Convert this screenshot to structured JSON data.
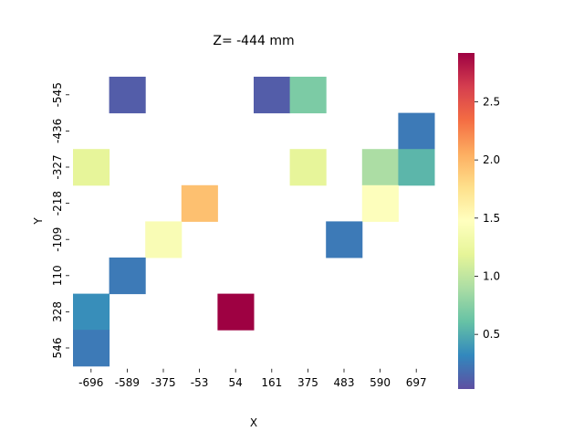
{
  "chart_data": {
    "type": "heatmap",
    "title": "Z= -444 mm",
    "xlabel": "X",
    "ylabel": "Y",
    "x_categories": [
      "-696",
      "-589",
      "-375",
      "-53",
      "54",
      "161",
      "375",
      "483",
      "590",
      "697"
    ],
    "y_categories": [
      "-545",
      "-436",
      "-327",
      "-218",
      "-109",
      "110",
      "328",
      "546"
    ],
    "colormap": "Spectral_r",
    "vmin": 0.03,
    "vmax": 2.92,
    "colorbar_ticks": [
      "0.5",
      "1.0",
      "1.5",
      "2.0",
      "2.5"
    ],
    "colorbar_tick_values": [
      0.5,
      1.0,
      1.5,
      2.0,
      2.5
    ],
    "values": [
      [
        null,
        0.1,
        null,
        null,
        null,
        0.1,
        0.7,
        null,
        null,
        null
      ],
      [
        null,
        null,
        null,
        null,
        null,
        null,
        null,
        null,
        null,
        0.25
      ],
      [
        1.2,
        null,
        null,
        null,
        null,
        null,
        1.2,
        null,
        0.9,
        0.55
      ],
      [
        null,
        null,
        null,
        1.95,
        null,
        null,
        null,
        null,
        1.45,
        null
      ],
      [
        null,
        null,
        1.4,
        null,
        null,
        null,
        null,
        0.25,
        null,
        null
      ],
      [
        null,
        0.25,
        null,
        null,
        null,
        null,
        null,
        null,
        null,
        null
      ],
      [
        0.35,
        null,
        null,
        null,
        2.92,
        null,
        null,
        null,
        null,
        null
      ],
      [
        0.25,
        null,
        null,
        null,
        null,
        null,
        null,
        null,
        null,
        null
      ]
    ]
  }
}
